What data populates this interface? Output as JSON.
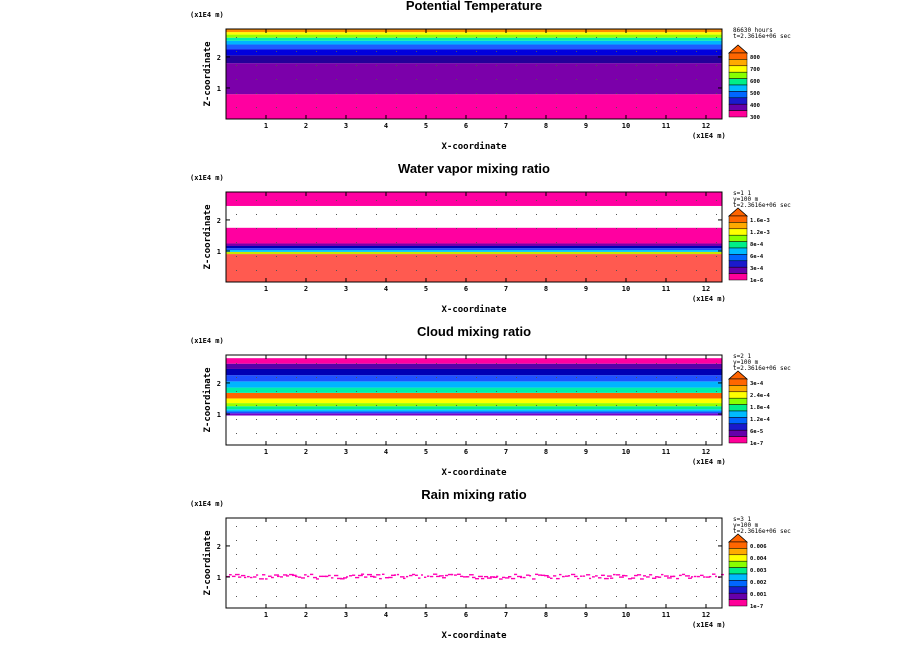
{
  "chart_data": [
    {
      "type": "heatmap",
      "title": "Potential Temperature",
      "xlabel": "X-coordinate",
      "ylabel": "Z-coordinate",
      "x_unit": "(x1E4 m)",
      "y_unit": "(x1E4 m)",
      "xlim": [
        0,
        12.4
      ],
      "ylim": [
        0,
        2.9
      ],
      "xticks": [
        "1",
        "2",
        "3",
        "4",
        "5",
        "6",
        "7",
        "8",
        "9",
        "10",
        "11",
        "12"
      ],
      "yticks": [
        "1",
        "2"
      ],
      "info": [
        "86630 hours",
        "t=2.3616e+06 sec"
      ],
      "legend": [
        "800",
        "700",
        "600",
        "500",
        "400",
        "300"
      ],
      "colors": [
        "#ff0099",
        "#6600aa",
        "#1a1acc",
        "#0066ff",
        "#00bbff",
        "#00ee88",
        "#88ff00",
        "#ffff00",
        "#ffaa00",
        "#ff6600"
      ],
      "bands": [
        {
          "z0": 0.0,
          "z1": 0.8,
          "color": "#ff00a0"
        },
        {
          "z0": 0.8,
          "z1": 1.8,
          "color": "#7b00aa"
        },
        {
          "z0": 1.8,
          "z1": 2.05,
          "color": "#240099"
        },
        {
          "z0": 2.05,
          "z1": 2.25,
          "color": "#0000dd"
        },
        {
          "z0": 2.25,
          "z1": 2.4,
          "color": "#1e5cff"
        },
        {
          "z0": 2.4,
          "z1": 2.52,
          "color": "#00b4ff"
        },
        {
          "z0": 2.52,
          "z1": 2.62,
          "color": "#00f0aa"
        },
        {
          "z0": 2.62,
          "z1": 2.72,
          "color": "#96ff00"
        },
        {
          "z0": 2.72,
          "z1": 2.8,
          "color": "#ffff00"
        },
        {
          "z0": 2.8,
          "z1": 2.9,
          "color": "#ff8c00"
        }
      ]
    },
    {
      "type": "heatmap",
      "title": "Water vapor mixing ratio",
      "xlabel": "X-coordinate",
      "ylabel": "Z-coordinate",
      "x_unit": "(x1E4 m)",
      "y_unit": "(x1E4 m)",
      "xlim": [
        0,
        12.4
      ],
      "ylim": [
        0,
        2.9
      ],
      "xticks": [
        "1",
        "2",
        "3",
        "4",
        "5",
        "6",
        "7",
        "8",
        "9",
        "10",
        "11",
        "12"
      ],
      "yticks": [
        "1",
        "2"
      ],
      "info": [
        "s=1 1",
        "y=100 m",
        "t=2.3616e+06 sec"
      ],
      "legend": [
        "1.6e-3",
        "1.2e-3",
        "8e-4",
        "6e-4",
        "3e-4",
        "1e-6"
      ],
      "colors": [
        "#ff0099",
        "#6600aa",
        "#1a1acc",
        "#0066ff",
        "#00bbff",
        "#00ee88",
        "#88ff00",
        "#ffff00",
        "#ffaa00",
        "#ff6600"
      ],
      "bands": [
        {
          "z0": 0.0,
          "z1": 0.9,
          "color": "#ff5a50"
        },
        {
          "z0": 0.9,
          "z1": 0.97,
          "color": "#c8e600"
        },
        {
          "z0": 0.97,
          "z1": 1.03,
          "color": "#00c8ff"
        },
        {
          "z0": 1.03,
          "z1": 1.09,
          "color": "#1e50ff"
        },
        {
          "z0": 1.09,
          "z1": 1.16,
          "color": "#0000b4"
        },
        {
          "z0": 1.16,
          "z1": 1.24,
          "color": "#7800aa"
        },
        {
          "z0": 1.24,
          "z1": 1.75,
          "color": "#ff00a0"
        },
        {
          "z0": 1.75,
          "z1": 2.45,
          "color": "#ffffff"
        },
        {
          "z0": 2.45,
          "z1": 2.9,
          "color": "#ff00a0"
        }
      ]
    },
    {
      "type": "heatmap",
      "title": "Cloud mixing ratio",
      "xlabel": "X-coordinate",
      "ylabel": "Z-coordinate",
      "x_unit": "(x1E4 m)",
      "y_unit": "(x1E4 m)",
      "xlim": [
        0,
        12.4
      ],
      "ylim": [
        0,
        2.9
      ],
      "xticks": [
        "1",
        "2",
        "3",
        "4",
        "5",
        "6",
        "7",
        "8",
        "9",
        "10",
        "11",
        "12"
      ],
      "yticks": [
        "1",
        "2"
      ],
      "info": [
        "s=2 1",
        "y=100 m",
        "t=2.3616e+06 sec"
      ],
      "legend": [
        "3e-4",
        "2.4e-4",
        "1.8e-4",
        "1.2e-4",
        "6e-5",
        "1e-7"
      ],
      "colors": [
        "#ff0099",
        "#6600aa",
        "#1a1acc",
        "#0066ff",
        "#00bbff",
        "#00ee88",
        "#88ff00",
        "#ffff00",
        "#ffaa00",
        "#ff6600"
      ],
      "bands": [
        {
          "z0": 0.0,
          "z1": 0.95,
          "color": "#ffffff"
        },
        {
          "z0": 0.95,
          "z1": 1.02,
          "color": "#7800c8"
        },
        {
          "z0": 1.02,
          "z1": 1.08,
          "color": "#1e50ff"
        },
        {
          "z0": 1.08,
          "z1": 1.15,
          "color": "#00c8ff"
        },
        {
          "z0": 1.15,
          "z1": 1.25,
          "color": "#00f096"
        },
        {
          "z0": 1.25,
          "z1": 1.35,
          "color": "#96ff00"
        },
        {
          "z0": 1.35,
          "z1": 1.5,
          "color": "#ffff00"
        },
        {
          "z0": 1.5,
          "z1": 1.68,
          "color": "#ff6400"
        },
        {
          "z0": 1.68,
          "z1": 1.85,
          "color": "#00f0aa"
        },
        {
          "z0": 1.85,
          "z1": 2.05,
          "color": "#00b4ff"
        },
        {
          "z0": 2.05,
          "z1": 2.25,
          "color": "#1e50ff"
        },
        {
          "z0": 2.25,
          "z1": 2.45,
          "color": "#0000b4"
        },
        {
          "z0": 2.45,
          "z1": 2.62,
          "color": "#5a00aa"
        },
        {
          "z0": 2.62,
          "z1": 2.8,
          "color": "#ff00a0"
        },
        {
          "z0": 2.8,
          "z1": 2.9,
          "color": "#ffffff"
        }
      ]
    },
    {
      "type": "heatmap",
      "title": "Rain mixing ratio",
      "xlabel": "X-coordinate",
      "ylabel": "Z-coordinate",
      "x_unit": "(x1E4 m)",
      "y_unit": "(x1E4 m)",
      "xlim": [
        0,
        12.4
      ],
      "ylim": [
        0,
        2.9
      ],
      "xticks": [
        "1",
        "2",
        "3",
        "4",
        "5",
        "6",
        "7",
        "8",
        "9",
        "10",
        "11",
        "12"
      ],
      "yticks": [
        "1",
        "2"
      ],
      "info": [
        "s=3 1",
        "y=100 m",
        "t=2.3616e+06 sec"
      ],
      "legend": [
        "0.006",
        "0.004",
        "0.003",
        "0.002",
        "0.001",
        "1e-7"
      ],
      "colors": [
        "#ff0099",
        "#6600aa",
        "#1a1acc",
        "#0066ff",
        "#00bbff",
        "#00ee88",
        "#88ff00",
        "#ffff00",
        "#ffaa00",
        "#ff6600"
      ],
      "bands": [],
      "rain_level": 1.0
    }
  ]
}
